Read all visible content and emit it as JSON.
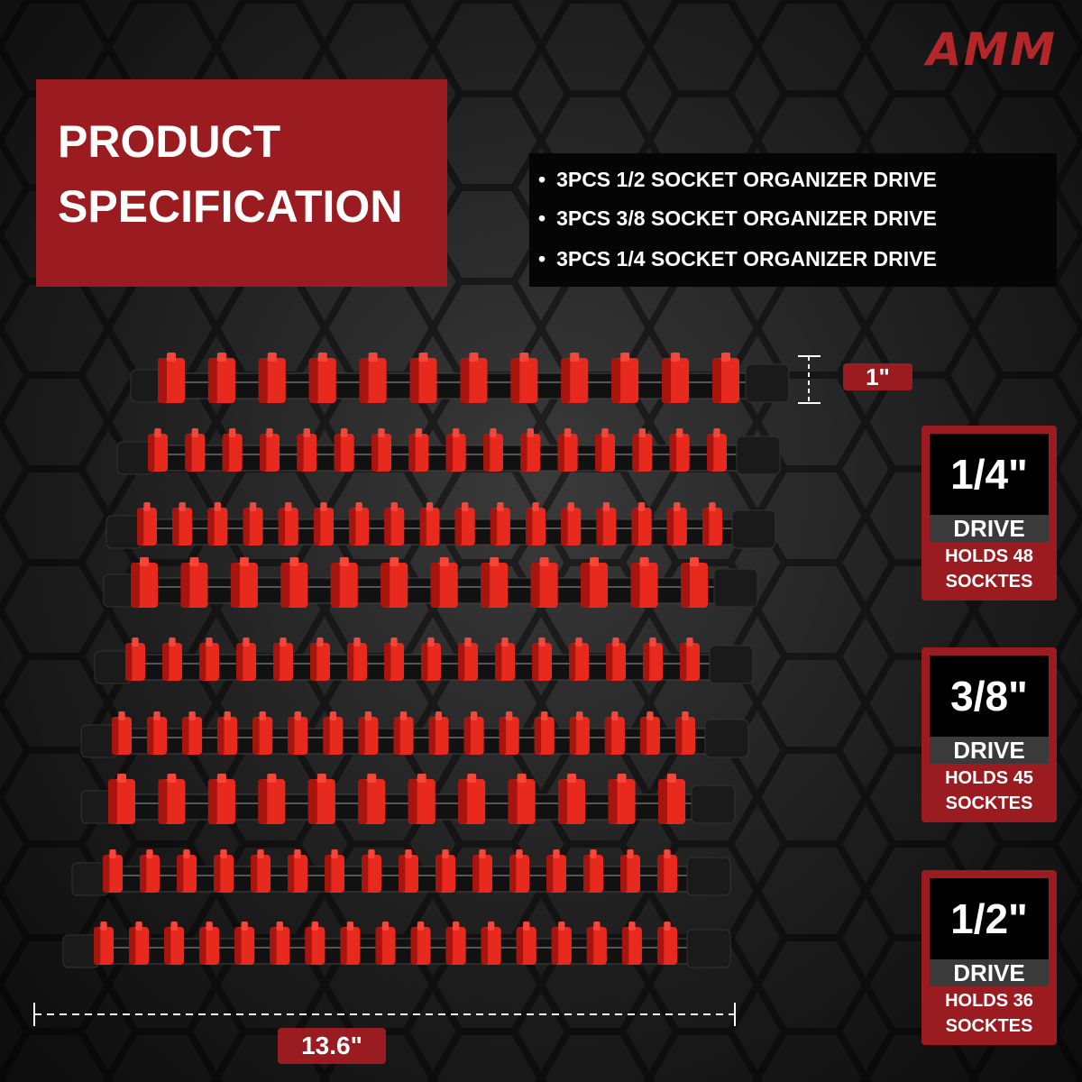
{
  "brand": "AMM",
  "header": {
    "title_lines": [
      "PRODUCT",
      "SPECIFICATION"
    ]
  },
  "specs": [
    "3PCS 1/2 SOCKET ORGANIZER DRIVE",
    "3PCS 3/8 SOCKET ORGANIZER DRIVE",
    "3PCS 1/4 SOCKET ORGANIZER DRIVE"
  ],
  "dimensions": {
    "height": "1\"",
    "length": "13.6\""
  },
  "drives": [
    {
      "size": "1/4\"",
      "label": "DRIVE",
      "holds": "HOLDS 48",
      "unit": "SOCKTES"
    },
    {
      "size": "3/8\"",
      "label": "DRIVE",
      "holds": "HOLDS 45",
      "unit": "SOCKTES"
    },
    {
      "size": "1/2\"",
      "label": "DRIVE",
      "holds": "HOLDS 36",
      "unit": "SOCKTES"
    }
  ]
}
